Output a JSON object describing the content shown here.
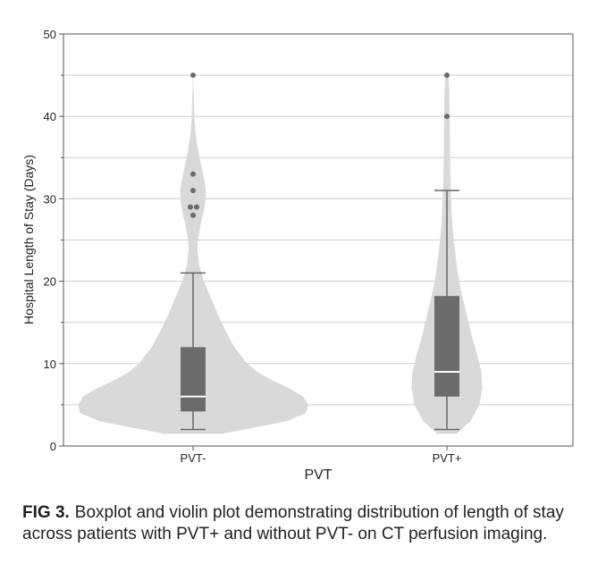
{
  "chart_data": {
    "type": "violin",
    "xlabel": "PVT",
    "ylabel": "Hospital Length of Stay (Days)",
    "ylim": [
      0,
      50
    ],
    "yticks": [
      0,
      10,
      20,
      30,
      40,
      50
    ],
    "grid": true,
    "categories": [
      "PVT-",
      "PVT+"
    ],
    "groups": [
      {
        "category": "PVT-",
        "box": {
          "whisker_low": 2,
          "q1": 4.2,
          "median": 6,
          "q3": 12,
          "whisker_high": 21
        },
        "outliers": [
          45,
          33,
          31,
          29,
          29,
          28
        ],
        "violin_profile": [
          [
            1.5,
            0.3
          ],
          [
            3,
            0.95
          ],
          [
            4,
            1.15
          ],
          [
            5,
            1.17
          ],
          [
            6,
            1.12
          ],
          [
            7,
            0.98
          ],
          [
            8,
            0.8
          ],
          [
            9,
            0.65
          ],
          [
            10,
            0.55
          ],
          [
            12,
            0.42
          ],
          [
            14,
            0.33
          ],
          [
            16,
            0.25
          ],
          [
            18,
            0.18
          ],
          [
            20,
            0.11
          ],
          [
            22,
            0.06
          ],
          [
            24,
            0.045
          ],
          [
            25,
            0.05
          ],
          [
            27,
            0.08
          ],
          [
            28,
            0.1
          ],
          [
            29,
            0.12
          ],
          [
            30,
            0.13
          ],
          [
            31,
            0.13
          ],
          [
            32,
            0.12
          ],
          [
            34,
            0.085
          ],
          [
            36,
            0.05
          ],
          [
            38,
            0.025
          ],
          [
            40,
            0.013
          ],
          [
            42,
            0.008
          ],
          [
            44,
            0.004
          ],
          [
            45.5,
            0
          ]
        ]
      },
      {
        "category": "PVT+",
        "box": {
          "whisker_low": 2,
          "q1": 6,
          "median": 9,
          "q3": 18.2,
          "whisker_high": 31
        },
        "outliers": [
          45,
          40
        ],
        "violin_profile": [
          [
            1.5,
            0.1
          ],
          [
            3,
            0.24
          ],
          [
            5,
            0.33
          ],
          [
            7,
            0.36
          ],
          [
            9,
            0.35
          ],
          [
            11,
            0.31
          ],
          [
            13,
            0.26
          ],
          [
            15,
            0.22
          ],
          [
            17,
            0.18
          ],
          [
            19,
            0.14
          ],
          [
            21,
            0.11
          ],
          [
            23,
            0.09
          ],
          [
            25,
            0.07
          ],
          [
            27,
            0.055
          ],
          [
            29,
            0.045
          ],
          [
            31,
            0.04
          ],
          [
            33,
            0.036
          ],
          [
            35,
            0.033
          ],
          [
            37,
            0.03
          ],
          [
            39,
            0.028
          ],
          [
            41,
            0.027
          ],
          [
            43,
            0.025
          ],
          [
            44.5,
            0.018
          ],
          [
            45.5,
            0
          ]
        ]
      }
    ],
    "colors": {
      "violin": "#d9d9d9",
      "box": "#6b6b6b",
      "median": "#ffffff",
      "whisker": "#666666",
      "outlier": "#6b6b6b",
      "grid": "#cfcfcf"
    }
  },
  "caption": {
    "label": "FIG 3.",
    "text": "Boxplot and violin plot demonstrating distribution of length of stay across patients with PVT+ and without PVT- on CT perfusion imaging."
  }
}
